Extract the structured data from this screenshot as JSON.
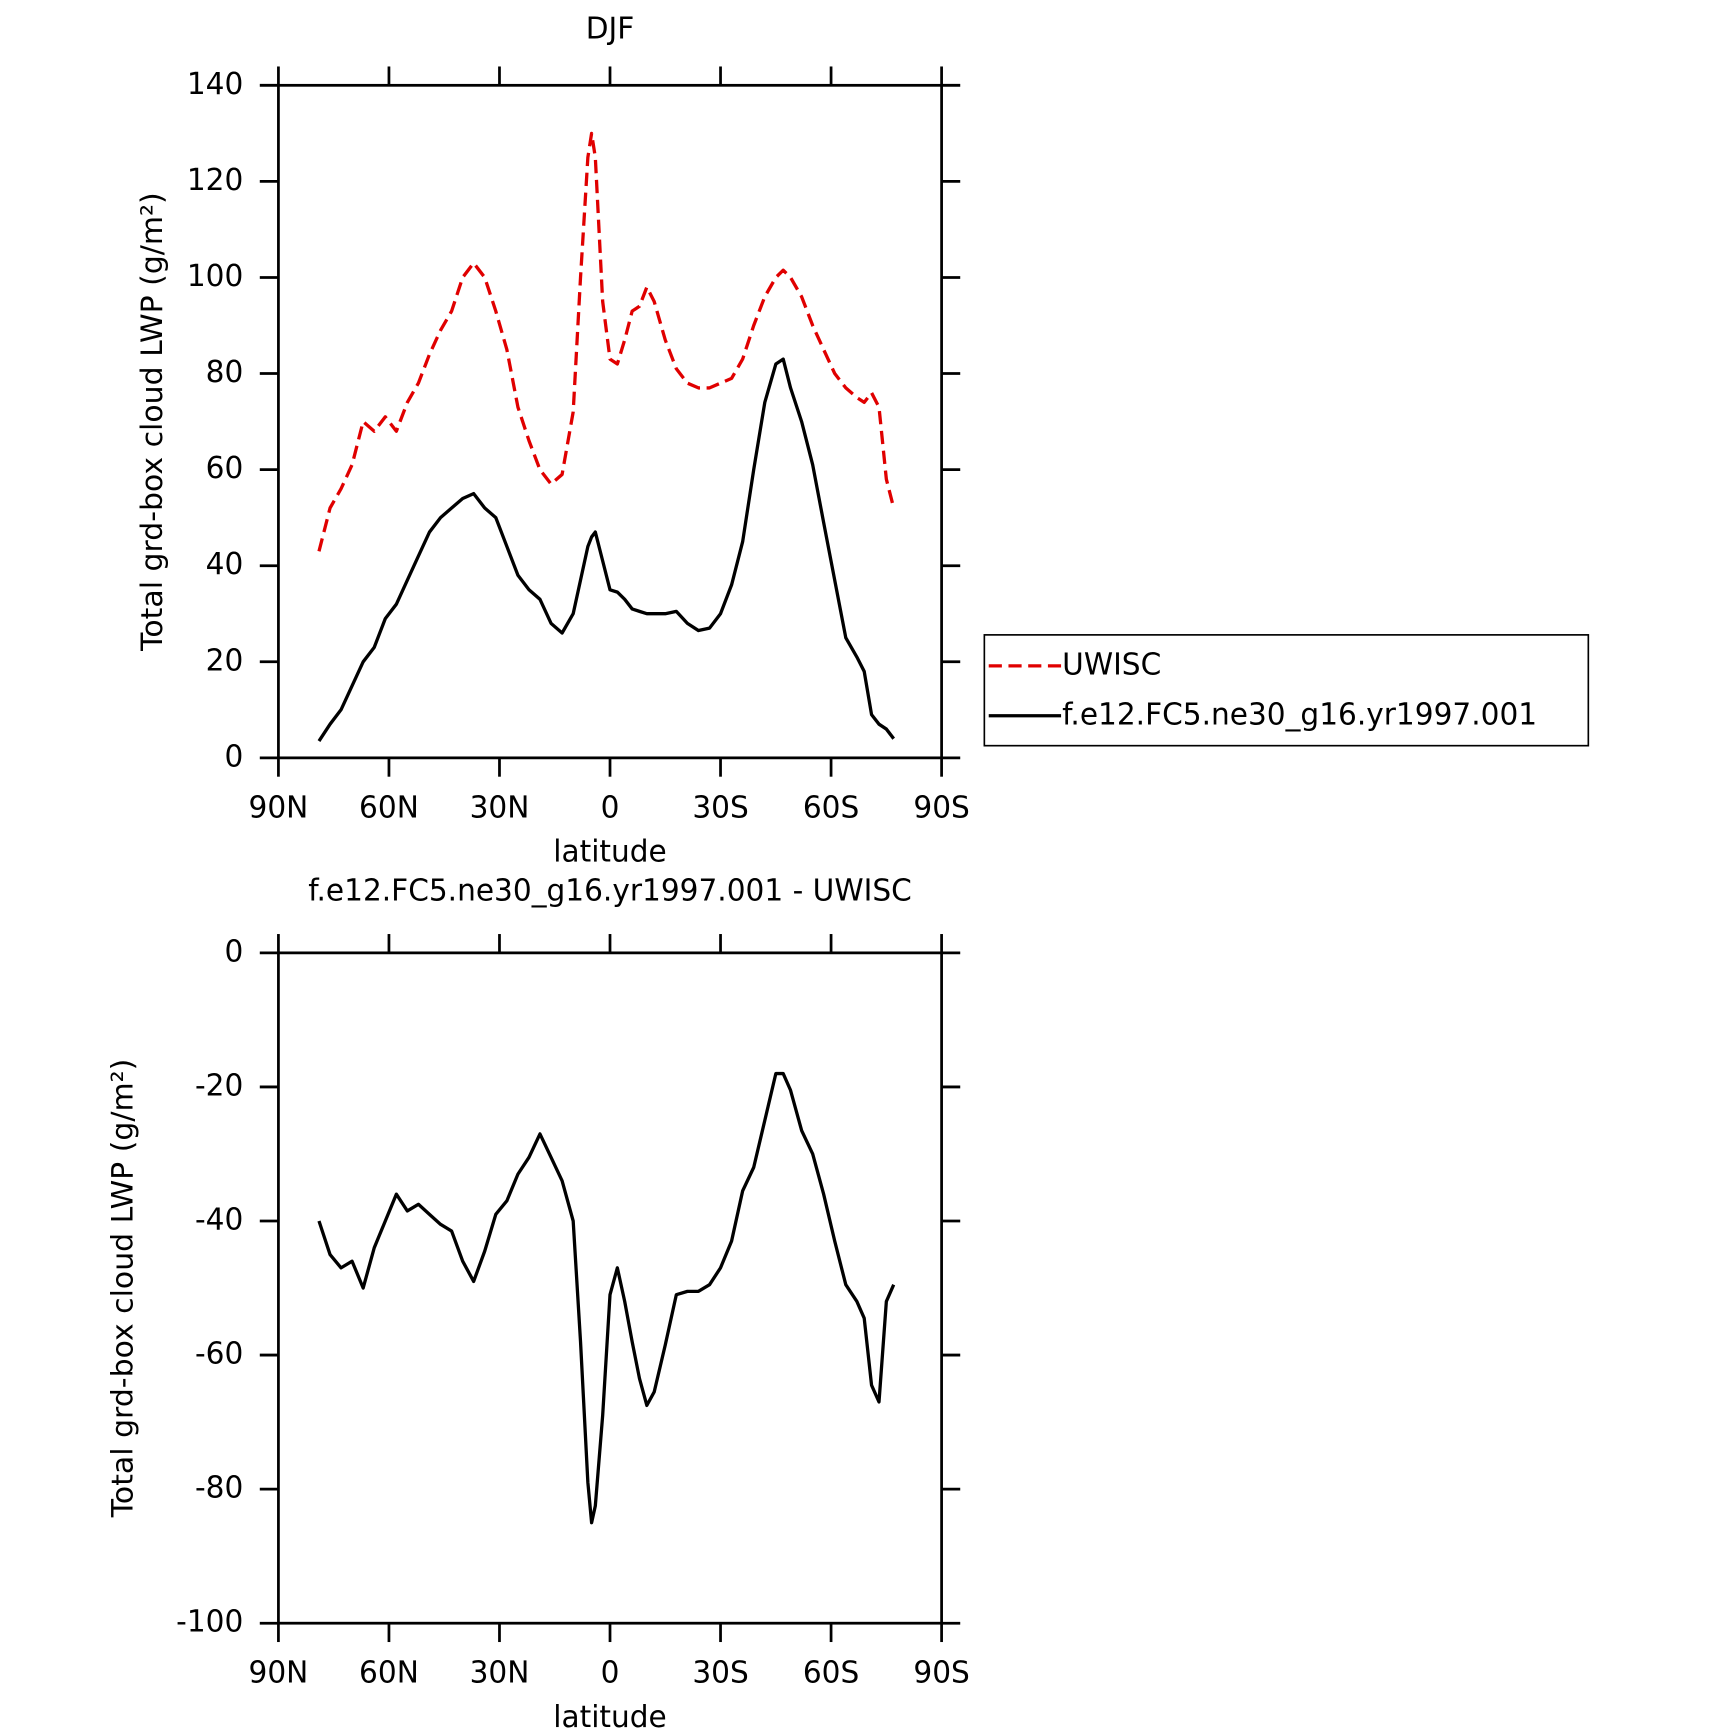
{
  "chart_data": [
    {
      "type": "line",
      "title": "DJF",
      "xlabel": "latitude",
      "ylabel": "Total grd-box cloud LWP (g/m²)",
      "x": [
        79,
        76,
        73,
        70,
        67,
        64,
        61,
        58,
        55,
        52,
        49,
        46,
        43,
        40,
        37,
        34,
        31,
        28,
        25,
        22,
        19,
        16,
        13,
        10,
        8,
        6,
        5,
        4,
        2,
        0,
        -2,
        -4,
        -6,
        -8,
        -10,
        -12,
        -15,
        -18,
        -21,
        -24,
        -27,
        -30,
        -33,
        -36,
        -39,
        -42,
        -45,
        -47,
        -49,
        -52,
        -55,
        -58,
        -61,
        -64,
        -67,
        -69,
        -71,
        -73,
        -75,
        -77
      ],
      "series": [
        {
          "name": "UWISC",
          "color": "#e00000",
          "linestyle": "dashed",
          "values": [
            43,
            52,
            56,
            61,
            70,
            68,
            71,
            68,
            74,
            78,
            84,
            89,
            93,
            100,
            103,
            100,
            93,
            85,
            73,
            66,
            60,
            57,
            59,
            72,
            100,
            125,
            130,
            125,
            95,
            83,
            82,
            87,
            93,
            94,
            98,
            95,
            87,
            81,
            78,
            77,
            77,
            78,
            79,
            83,
            90,
            96,
            100,
            101.5,
            100,
            96,
            90,
            85,
            80,
            77,
            75,
            74,
            76,
            73,
            58,
            52
          ]
        },
        {
          "name": "f.e12.FC5.ne30_g16.yr1997.001",
          "color": "#000000",
          "linestyle": "solid",
          "values": [
            3.5,
            7,
            10,
            15,
            20,
            23,
            29,
            32,
            37,
            42,
            47,
            50,
            52,
            54,
            55,
            52,
            50,
            44,
            38,
            35,
            33,
            28,
            26,
            30,
            37,
            44,
            46,
            47,
            41,
            35,
            34.5,
            33,
            31,
            30.5,
            30,
            30,
            30,
            30.5,
            28,
            26.5,
            27,
            30,
            36,
            45,
            60,
            74,
            82,
            83,
            77,
            70,
            61,
            49,
            37,
            25,
            21,
            18,
            9,
            7,
            6,
            4
          ]
        }
      ],
      "xlim": [
        90,
        -90
      ],
      "xticks": [
        {
          "value": 90,
          "label": "90N"
        },
        {
          "value": 60,
          "label": "60N"
        },
        {
          "value": 30,
          "label": "30N"
        },
        0,
        {
          "value": -30,
          "label": "30S"
        },
        {
          "value": -60,
          "label": "60S"
        },
        {
          "value": -90,
          "label": "90S"
        }
      ],
      "ylim": [
        0,
        140
      ],
      "yticks": [
        0,
        20,
        40,
        60,
        80,
        100,
        120,
        140
      ],
      "legend": "right"
    },
    {
      "type": "line",
      "title": "f.e12.FC5.ne30_g16.yr1997.001 - UWISC",
      "xlabel": "latitude",
      "ylabel": "Total grd-box cloud LWP (g/m²)",
      "x": [
        79,
        76,
        73,
        70,
        67,
        64,
        61,
        58,
        55,
        52,
        49,
        46,
        43,
        40,
        37,
        34,
        31,
        28,
        25,
        22,
        19,
        16,
        13,
        10,
        8,
        6,
        5,
        4,
        2,
        0,
        -2,
        -4,
        -6,
        -8,
        -10,
        -12,
        -15,
        -18,
        -21,
        -24,
        -27,
        -30,
        -33,
        -36,
        -39,
        -42,
        -45,
        -47,
        -49,
        -52,
        -55,
        -58,
        -61,
        -64,
        -67,
        -69,
        -71,
        -73,
        -75,
        -77
      ],
      "series": [
        {
          "color": "#000000",
          "linestyle": "solid",
          "values": [
            -40,
            -45,
            -47,
            -46,
            -50,
            -44,
            -40,
            -36,
            -38.5,
            -37.5,
            -39,
            -40.5,
            -41.5,
            -46,
            -49,
            -44.5,
            -39,
            -37,
            -33,
            -30.5,
            -27,
            -30.5,
            -34,
            -40,
            -58,
            -79,
            -85,
            -82.5,
            -69,
            -51,
            -47,
            -52,
            -58,
            -63.5,
            -67.5,
            -65.5,
            -58.5,
            -51,
            -50.5,
            -50.5,
            -49.5,
            -47,
            -43,
            -35.5,
            -32,
            -25,
            -18,
            -18,
            -20.5,
            -26.5,
            -30,
            -36,
            -43,
            -49.5,
            -52,
            -54.5,
            -64.5,
            -67,
            -52,
            -49.5
          ]
        }
      ],
      "xlim": [
        90,
        -90
      ],
      "xticks": [
        {
          "value": 90,
          "label": "90N"
        },
        {
          "value": 60,
          "label": "60N"
        },
        {
          "value": 30,
          "label": "30N"
        },
        0,
        {
          "value": -30,
          "label": "30S"
        },
        {
          "value": -60,
          "label": "60S"
        },
        {
          "value": -90,
          "label": "90S"
        }
      ],
      "ylim": [
        -100,
        0
      ],
      "yticks": [
        -100,
        -80,
        -60,
        -40,
        -20,
        0
      ]
    }
  ]
}
